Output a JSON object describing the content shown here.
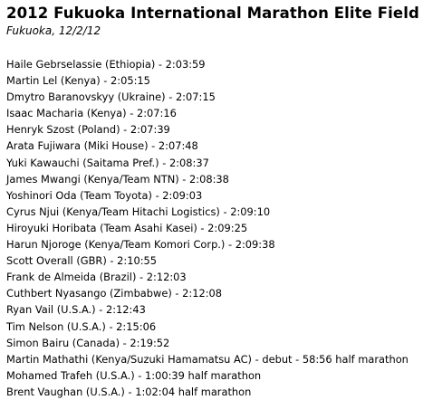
{
  "document": {
    "title": "2012 Fukuoka International Marathon Elite Field",
    "subtitle": "Fukuoka, 12/2/12",
    "entries": [
      "Haile Gebrselassie (Ethiopia) - 2:03:59",
      "Martin Lel (Kenya) - 2:05:15",
      "Dmytro Baranovskyy (Ukraine) - 2:07:15",
      "Isaac Macharia (Kenya) - 2:07:16",
      "Henryk Szost (Poland) - 2:07:39",
      "Arata Fujiwara (Miki House) - 2:07:48",
      "Yuki Kawauchi (Saitama Pref.) - 2:08:37",
      "James Mwangi (Kenya/Team NTN) - 2:08:38",
      "Yoshinori Oda (Team Toyota) - 2:09:03",
      "Cyrus Njui (Kenya/Team Hitachi Logistics) - 2:09:10",
      "Hiroyuki Horibata (Team Asahi Kasei) - 2:09:25",
      "Harun Njoroge (Kenya/Team Komori Corp.) - 2:09:38",
      "Scott Overall (GBR) - 2:10:55",
      "Frank de Almeida (Brazil) - 2:12:03",
      "Cuthbert Nyasango (Zimbabwe) - 2:12:08",
      "Ryan Vail (U.S.A.) - 2:12:43",
      "Tim Nelson (U.S.A.) - 2:15:06",
      "Simon Bairu (Canada) - 2:19:52",
      "Martin Mathathi (Kenya/Suzuki Hamamatsu AC) - debut - 58:56 half marathon",
      "Mohamed Trafeh (U.S.A.) - 1:00:39 half marathon",
      "Brent Vaughan (U.S.A.) - 1:02:04 half marathon"
    ]
  }
}
